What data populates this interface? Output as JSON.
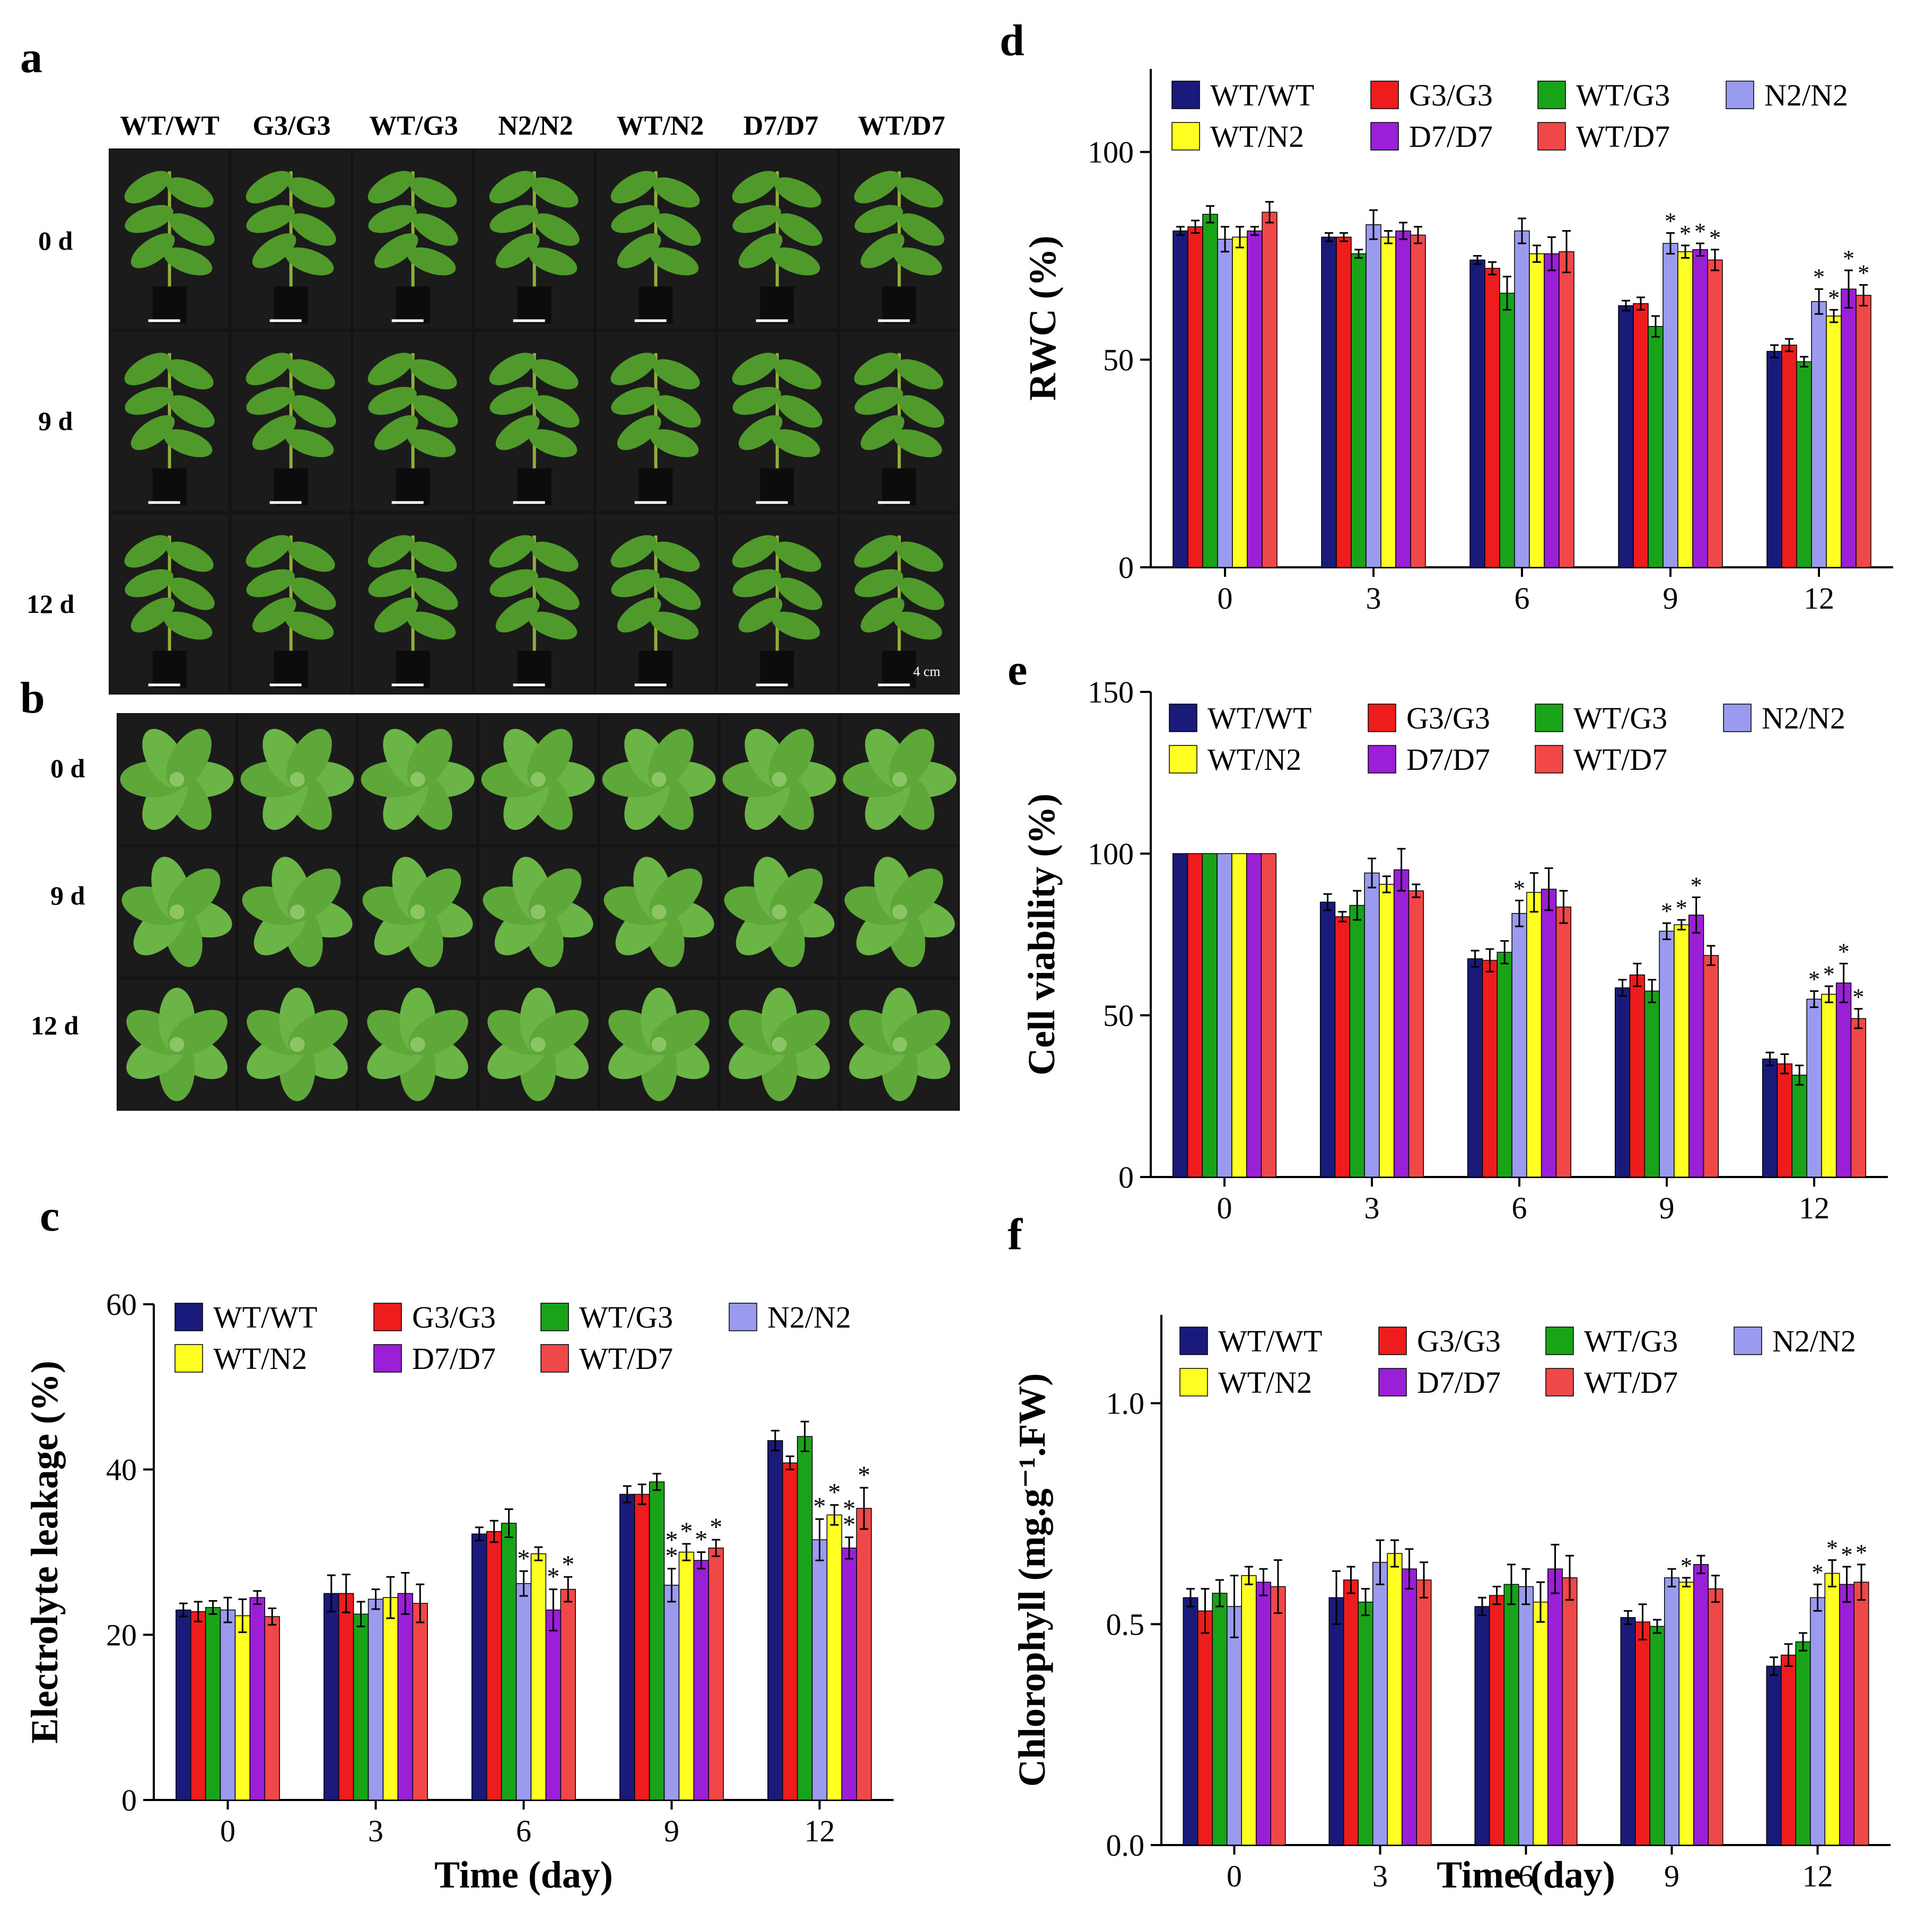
{
  "panel_letters": {
    "a": "a",
    "b": "b",
    "c": "c",
    "d": "d",
    "e": "e",
    "f": "f"
  },
  "photo_panel_a": {
    "columns": [
      "WT/WT",
      "G3/G3",
      "WT/G3",
      "N2/N2",
      "WT/N2",
      "D7/D7",
      "WT/D7"
    ],
    "rows": [
      "0 d",
      "9 d",
      "12 d"
    ],
    "scale_label": "4 cm"
  },
  "photo_panel_b": {
    "rows": [
      "0 d",
      "9 d",
      "12 d"
    ]
  },
  "colors": {
    "WT/WT": "#1a1a7a",
    "G3/G3": "#ee1c1c",
    "WT/G3": "#19a319",
    "N2/N2": "#9a9aee",
    "WT/N2": "#ffff22",
    "D7/D7": "#9a1fd6",
    "WT/D7": "#f04848"
  },
  "chart_data": [
    {
      "id": "c",
      "type": "bar",
      "title": "",
      "xlabel": "Time (day)",
      "ylabel": "Electrolyte leakage (%)",
      "ylim": [
        0,
        60
      ],
      "yticks": [
        0,
        20,
        40,
        60
      ],
      "categories": [
        "0",
        "3",
        "6",
        "9",
        "12"
      ],
      "legend": [
        "WT/WT",
        "G3/G3",
        "WT/G3",
        "N2/N2",
        "WT/N2",
        "D7/D7",
        "WT/D7"
      ],
      "series": [
        {
          "name": "WT/WT",
          "values": [
            23.0,
            25.0,
            32.2,
            37.0,
            43.5
          ],
          "errors": [
            0.8,
            2.2,
            0.8,
            1.0,
            1.2
          ],
          "stars": [
            "",
            "",
            "",
            "",
            ""
          ]
        },
        {
          "name": "G3/G3",
          "values": [
            22.8,
            25.0,
            32.5,
            37.0,
            40.8
          ],
          "errors": [
            1.2,
            2.3,
            1.3,
            1.2,
            0.8
          ],
          "stars": [
            "",
            "",
            "",
            "",
            ""
          ]
        },
        {
          "name": "WT/G3",
          "values": [
            23.3,
            22.5,
            33.5,
            38.5,
            44.0
          ],
          "errors": [
            0.8,
            1.5,
            1.7,
            1.0,
            1.8
          ],
          "stars": [
            "",
            "",
            "",
            "",
            ""
          ]
        },
        {
          "name": "N2/N2",
          "values": [
            23.0,
            24.3,
            26.2,
            26.0,
            31.5
          ],
          "errors": [
            1.5,
            1.2,
            1.5,
            2.0,
            2.5
          ],
          "stars": [
            "",
            "",
            "*",
            "*\n*",
            "*"
          ]
        },
        {
          "name": "WT/N2",
          "values": [
            22.3,
            24.5,
            29.8,
            30.0,
            34.5
          ],
          "errors": [
            2.0,
            2.5,
            0.8,
            1.0,
            1.2
          ],
          "stars": [
            "",
            "",
            "",
            "*",
            "*"
          ]
        },
        {
          "name": "D7/D7",
          "values": [
            24.5,
            25.0,
            23.0,
            29.0,
            30.5
          ],
          "errors": [
            0.8,
            2.5,
            2.5,
            1.0,
            1.3
          ],
          "stars": [
            "",
            "",
            "*",
            "*",
            "*\n*"
          ]
        },
        {
          "name": "WT/D7",
          "values": [
            22.2,
            23.8,
            25.5,
            30.5,
            35.3
          ],
          "errors": [
            1.0,
            2.3,
            1.5,
            1.0,
            2.5
          ],
          "stars": [
            "",
            "",
            "*",
            "*",
            "*"
          ]
        }
      ]
    },
    {
      "id": "d",
      "type": "bar",
      "title": "",
      "xlabel": "",
      "ylabel": "RWC (%)",
      "ylim": [
        0,
        120
      ],
      "yticks": [
        0,
        50,
        100
      ],
      "categories": [
        "0",
        "3",
        "6",
        "9",
        "12"
      ],
      "legend": [
        "WT/WT",
        "G3/G3",
        "WT/G3",
        "N2/N2",
        "WT/N2",
        "D7/D7",
        "WT/D7"
      ],
      "series": [
        {
          "name": "WT/WT",
          "values": [
            81,
            79.5,
            74,
            63,
            52
          ],
          "errors": [
            1.0,
            1.0,
            1.0,
            1.2,
            1.5
          ],
          "stars": [
            "",
            "",
            "",
            "",
            ""
          ]
        },
        {
          "name": "G3/G3",
          "values": [
            82,
            79.5,
            72,
            63.5,
            53.5
          ],
          "errors": [
            1.5,
            1.0,
            1.5,
            1.5,
            1.5
          ],
          "stars": [
            "",
            "",
            "",
            "",
            ""
          ]
        },
        {
          "name": "WT/G3",
          "values": [
            85,
            75.5,
            66,
            58,
            49.5
          ],
          "errors": [
            2.0,
            1.0,
            4.0,
            2.5,
            1.2
          ],
          "stars": [
            "",
            "",
            "",
            "",
            ""
          ]
        },
        {
          "name": "N2/N2",
          "values": [
            79,
            82.5,
            81,
            78,
            64
          ],
          "errors": [
            3.0,
            3.5,
            3.0,
            2.5,
            3.0
          ],
          "stars": [
            "",
            "",
            "",
            "*",
            "*"
          ]
        },
        {
          "name": "WT/N2",
          "values": [
            79.5,
            79.5,
            75.5,
            76,
            60.5
          ],
          "errors": [
            2.5,
            1.5,
            2.0,
            1.5,
            1.5
          ],
          "stars": [
            "",
            "",
            "",
            "*",
            "*"
          ]
        },
        {
          "name": "D7/D7",
          "values": [
            81,
            81,
            75.5,
            76.5,
            67
          ],
          "errors": [
            1.0,
            2.0,
            4.0,
            1.5,
            4.5
          ],
          "stars": [
            "",
            "",
            "",
            "*",
            "*"
          ]
        },
        {
          "name": "WT/D7",
          "values": [
            85.5,
            80,
            76,
            74,
            65.5
          ],
          "errors": [
            2.5,
            2.0,
            5.0,
            2.5,
            2.5
          ],
          "stars": [
            "",
            "",
            "",
            "*",
            "*"
          ]
        }
      ]
    },
    {
      "id": "e",
      "type": "bar",
      "title": "",
      "xlabel": "",
      "ylabel": "Cell viability (%)",
      "ylim": [
        0,
        150
      ],
      "yticks": [
        0,
        50,
        100,
        150
      ],
      "categories": [
        "0",
        "3",
        "6",
        "9",
        "12"
      ],
      "legend": [
        "WT/WT",
        "G3/G3",
        "WT/G3",
        "N2/N2",
        "WT/N2",
        "D7/D7",
        "WT/D7"
      ],
      "series": [
        {
          "name": "WT/WT",
          "values": [
            100,
            85,
            67.5,
            58.5,
            36.5
          ],
          "errors": [
            0,
            2.5,
            2.5,
            2.5,
            2.0
          ],
          "stars": [
            "",
            "",
            "",
            "",
            ""
          ]
        },
        {
          "name": "G3/G3",
          "values": [
            100,
            80.5,
            67,
            62.5,
            35
          ],
          "errors": [
            0,
            1.5,
            3.5,
            3.5,
            3.0
          ],
          "stars": [
            "",
            "",
            "",
            "",
            ""
          ]
        },
        {
          "name": "WT/G3",
          "values": [
            100,
            84,
            69.5,
            57.5,
            31.5
          ],
          "errors": [
            0,
            4.5,
            3.5,
            3.5,
            3.0
          ],
          "stars": [
            "",
            "",
            "",
            "",
            ""
          ]
        },
        {
          "name": "N2/N2",
          "values": [
            100,
            94,
            81.5,
            76,
            55
          ],
          "errors": [
            0,
            4.5,
            4.0,
            2.5,
            2.5
          ],
          "stars": [
            "",
            "",
            "*",
            "*",
            "*"
          ]
        },
        {
          "name": "WT/N2",
          "values": [
            100,
            90.5,
            88,
            78,
            56.5
          ],
          "errors": [
            0,
            2.5,
            6.0,
            1.5,
            2.5
          ],
          "stars": [
            "",
            "",
            "",
            "*",
            "*"
          ]
        },
        {
          "name": "D7/D7",
          "values": [
            100,
            95,
            89,
            81,
            60
          ],
          "errors": [
            0,
            6.5,
            6.5,
            5.5,
            6.0
          ],
          "stars": [
            "",
            "",
            "",
            "*",
            "*"
          ]
        },
        {
          "name": "WT/D7",
          "values": [
            100,
            88.5,
            83.5,
            68.5,
            49
          ],
          "errors": [
            0,
            2.0,
            5.0,
            3.0,
            3.0
          ],
          "stars": [
            "",
            "",
            "",
            "",
            "*"
          ]
        }
      ]
    },
    {
      "id": "f",
      "type": "bar",
      "title": "",
      "xlabel": "Time (day)",
      "ylabel": "Chlorophyll (mg.g⁻¹.FW)",
      "ylim": [
        0,
        1.2
      ],
      "yticks": [
        0.0,
        0.5,
        1.0
      ],
      "ytick_labels": [
        "0.0",
        "0.5",
        "1.0"
      ],
      "categories": [
        "0",
        "3",
        "6",
        "9",
        "12"
      ],
      "legend": [
        "WT/WT",
        "G3/G3",
        "WT/G3",
        "N2/N2",
        "WT/N2",
        "D7/D7",
        "WT/D7"
      ],
      "series": [
        {
          "name": "WT/WT",
          "values": [
            0.56,
            0.56,
            0.54,
            0.515,
            0.405
          ],
          "errors": [
            0.02,
            0.06,
            0.02,
            0.015,
            0.02
          ],
          "stars": [
            "",
            "",
            "",
            "",
            ""
          ]
        },
        {
          "name": "G3/G3",
          "values": [
            0.53,
            0.6,
            0.565,
            0.505,
            0.43
          ],
          "errors": [
            0.05,
            0.03,
            0.02,
            0.04,
            0.025
          ],
          "stars": [
            "",
            "",
            "",
            "",
            ""
          ]
        },
        {
          "name": "WT/G3",
          "values": [
            0.57,
            0.55,
            0.59,
            0.495,
            0.46
          ],
          "errors": [
            0.03,
            0.03,
            0.045,
            0.015,
            0.02
          ],
          "stars": [
            "",
            "",
            "",
            "",
            ""
          ]
        },
        {
          "name": "N2/N2",
          "values": [
            0.54,
            0.64,
            0.585,
            0.605,
            0.56
          ],
          "errors": [
            0.07,
            0.05,
            0.04,
            0.02,
            0.03
          ],
          "stars": [
            "",
            "",
            "",
            "",
            "*"
          ]
        },
        {
          "name": "WT/N2",
          "values": [
            0.61,
            0.66,
            0.55,
            0.595,
            0.615
          ],
          "errors": [
            0.02,
            0.03,
            0.045,
            0.01,
            0.03
          ],
          "stars": [
            "",
            "",
            "",
            "*",
            "*"
          ]
        },
        {
          "name": "D7/D7",
          "values": [
            0.595,
            0.625,
            0.625,
            0.635,
            0.59
          ],
          "errors": [
            0.03,
            0.045,
            0.055,
            0.02,
            0.04
          ],
          "stars": [
            "",
            "",
            "",
            "",
            "*"
          ]
        },
        {
          "name": "WT/D7",
          "values": [
            0.585,
            0.6,
            0.605,
            0.58,
            0.595
          ],
          "errors": [
            0.06,
            0.04,
            0.05,
            0.03,
            0.04
          ],
          "stars": [
            "",
            "",
            "",
            "",
            "*"
          ]
        }
      ]
    }
  ]
}
